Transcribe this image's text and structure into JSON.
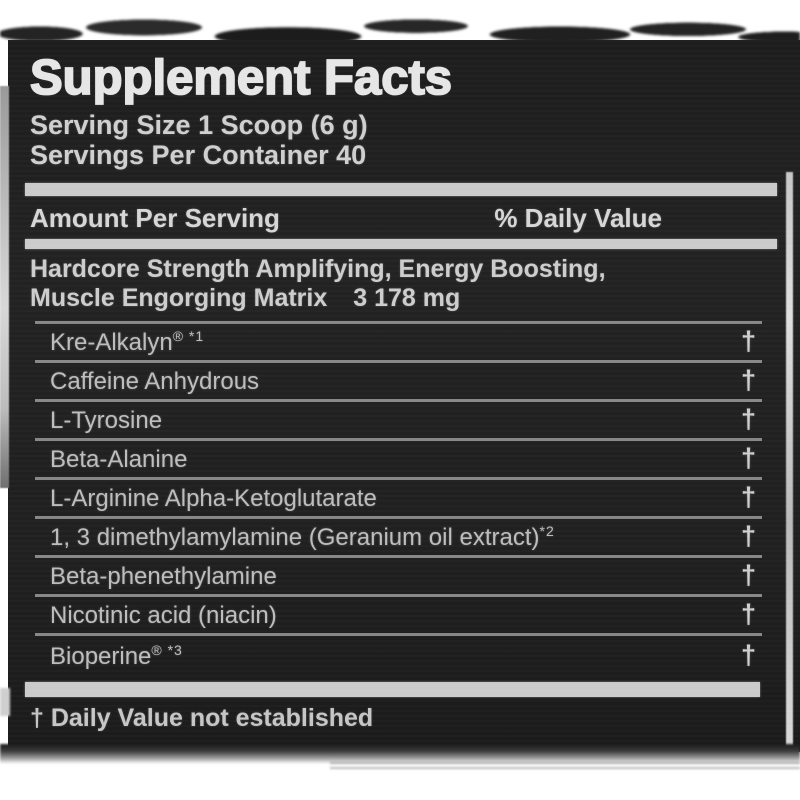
{
  "label": {
    "title": "Supplement Facts",
    "serving_size": "Serving Size 1 Scoop (6 g)",
    "servings_per_container": "Servings Per Container 40",
    "columns": {
      "amount": "Amount Per Serving",
      "daily_value": "% Daily Value"
    },
    "matrix": {
      "line1": "Hardcore Strength Amplifying, Energy Boosting,",
      "line2_name": "Muscle Engorging Matrix",
      "line2_amount": "3 178 mg"
    },
    "ingredients": [
      {
        "name": "Kre-Alkalyn",
        "sup": "® *1",
        "daily_value": "†"
      },
      {
        "name": "Caffeine Anhydrous",
        "sup": "",
        "daily_value": "†"
      },
      {
        "name": "L-Tyrosine",
        "sup": "",
        "daily_value": "†"
      },
      {
        "name": "Beta-Alanine",
        "sup": "",
        "daily_value": "†"
      },
      {
        "name": "L-Arginine Alpha-Ketoglutarate",
        "sup": "",
        "daily_value": "†"
      },
      {
        "name": "1, 3 dimethylamylamine (Geranium oil extract)",
        "sup": "*2",
        "daily_value": "†"
      },
      {
        "name": "Beta-phenethylamine",
        "sup": "",
        "daily_value": "†"
      },
      {
        "name": "Nicotinic acid (niacin)",
        "sup": "",
        "daily_value": "†"
      },
      {
        "name": "Bioperine",
        "sup": "® *3",
        "daily_value": "†"
      }
    ],
    "footnote": "† Daily Value not established"
  },
  "colors": {
    "panel_bg": "#1f1f1f",
    "title_text": "#e6e6e6",
    "body_text": "#bdbdbd",
    "bar": "#cbcbcb",
    "separator_line": "#878787",
    "page_bg": "#ffffff"
  }
}
